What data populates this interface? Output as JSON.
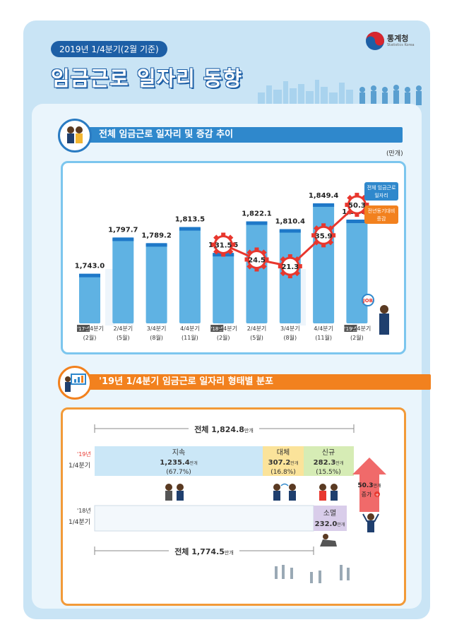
{
  "header": {
    "date_label": "2019년 1/4분기(2월 기준)",
    "title": "임금근로 일자리 동향",
    "logo_text": "통계청",
    "logo_sub": "Statistics Korea"
  },
  "section1": {
    "title": "전체 임금근로 일자리 및 증감 추이",
    "unit": "(만개)",
    "legend_total": [
      "전체 임금근로",
      "일자리"
    ],
    "legend_change": [
      "전년동기대비",
      "증감"
    ],
    "job_badge": "JOB"
  },
  "chart_data": [
    {
      "type": "bar",
      "categories": [
        "'17년 1/4분기 (2월)",
        "2/4분기 (5월)",
        "3/4분기 (8월)",
        "4/4분기 (11월)",
        "'18년 1/4분기 (2월)",
        "2/4분기 (5월)",
        "3/4분기 (8월)",
        "4/4분기 (11월)",
        "'19년 1/4분기 (2월)"
      ],
      "tick_year": [
        "'17년",
        "",
        "",
        "",
        "'18년",
        "",
        "",
        "",
        "'19년"
      ],
      "tick_quarter": [
        "1/4분기",
        "2/4분기",
        "3/4분기",
        "4/4분기",
        "1/4분기",
        "2/4분기",
        "3/4분기",
        "4/4분기",
        "1/4분기"
      ],
      "tick_month": [
        "(2월)",
        "(5월)",
        "(8월)",
        "(11월)",
        "(2월)",
        "(5월)",
        "(8월)",
        "(11월)",
        "(2월)"
      ],
      "series": [
        {
          "name": "전체 임금근로 일자리",
          "values": [
            1743.0,
            1797.7,
            1789.2,
            1813.5,
            1774.5,
            1822.1,
            1810.4,
            1849.4,
            1824.8
          ],
          "labels": [
            "1,743.0",
            "1,797.7",
            "1,789.2",
            "1,813.5",
            "1,774.5",
            "1,822.1",
            "1,810.4",
            "1,849.4",
            "1,824.8"
          ]
        },
        {
          "name": "전년동기대비 증감",
          "values": [
            null,
            null,
            null,
            null,
            31.5,
            24.5,
            21.3,
            35.9,
            50.3
          ],
          "labels": [
            "",
            "",
            "",
            "",
            "31.5",
            "24.5",
            "21.3",
            "35.9",
            "50.3"
          ]
        }
      ],
      "colors": {
        "bar": "#5fb2e3",
        "bar_top": "#1e78c8",
        "line": "#e8372e"
      }
    },
    {
      "type": "bar",
      "categories": [
        "'19년 1/4분기",
        "'18년 1/4분기"
      ],
      "series": [
        {
          "name": "지속",
          "values": [
            1235.4,
            1235.4
          ]
        },
        {
          "name": "대체",
          "values": [
            307.2,
            307.2
          ]
        },
        {
          "name": "신규",
          "values": [
            282.3,
            null
          ]
        },
        {
          "name": "소멸",
          "values": [
            null,
            232.0
          ]
        }
      ]
    }
  ],
  "section2": {
    "title": "'19년 1/4분기 임금근로 일자리 형태별 분포",
    "total_top": {
      "prefix": "전체",
      "value": "1,824.8",
      "unit": "만개"
    },
    "total_bottom": {
      "prefix": "전체",
      "value": "1,774.5",
      "unit": "만개"
    },
    "row19": {
      "year": "'19년",
      "quarter": "1/4분기"
    },
    "row18": {
      "year": "'18년",
      "quarter": "1/4분기"
    },
    "continued": {
      "label": "지속",
      "value": "1,235.4",
      "unit": "만개",
      "pct": "(67.7%)"
    },
    "replaced": {
      "label": "대체",
      "value": "307.2",
      "unit": "만개",
      "pct": "(16.8%)"
    },
    "new": {
      "label": "신규",
      "value": "282.3",
      "unit": "만개",
      "pct": "(15.5%)"
    },
    "extinct": {
      "label": "소멸",
      "value": "232.0",
      "unit": "만개"
    },
    "increase": {
      "value": "50.3",
      "unit": "만개",
      "label": "증가"
    }
  }
}
